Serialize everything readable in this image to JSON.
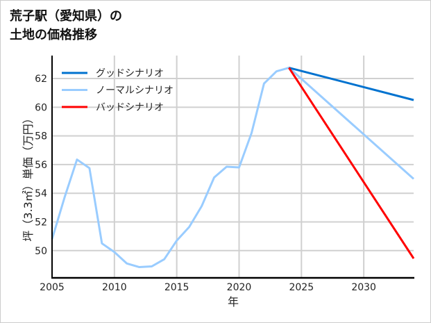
{
  "chart_data": {
    "type": "line",
    "title_lines": [
      "荒子駅（愛知県）の",
      "土地の価格推移"
    ],
    "xlabel": "年",
    "ylabel": "坪（3.3㎡）単価（万円）",
    "xlim": [
      2005,
      2034
    ],
    "ylim": [
      48.1,
      63.6
    ],
    "xticks": [
      2005,
      2010,
      2015,
      2020,
      2025,
      2030
    ],
    "yticks": [
      50,
      52,
      54,
      56,
      58,
      60,
      62
    ],
    "grid": true,
    "legend_position": "top-left",
    "series": [
      {
        "name": "グッドシナリオ",
        "color": "#0072cf",
        "x": [
          2024,
          2034
        ],
        "y": [
          62.75,
          60.5
        ]
      },
      {
        "name": "ノーマルシナリオ",
        "color": "#99ccff",
        "x": [
          2005,
          2006,
          2007,
          2008,
          2009,
          2010,
          2011,
          2012,
          2013,
          2014,
          2015,
          2016,
          2017,
          2018,
          2019,
          2020,
          2021,
          2022,
          2023,
          2024,
          2034
        ],
        "y": [
          50.8,
          53.7,
          56.35,
          55.75,
          50.5,
          49.9,
          49.1,
          48.85,
          48.9,
          49.4,
          50.7,
          51.65,
          53.1,
          55.1,
          55.85,
          55.8,
          58.2,
          61.65,
          62.5,
          62.75,
          55.0
        ]
      },
      {
        "name": "バッドシナリオ",
        "color": "#ff0000",
        "x": [
          2024,
          2034
        ],
        "y": [
          62.75,
          49.45
        ]
      }
    ]
  }
}
